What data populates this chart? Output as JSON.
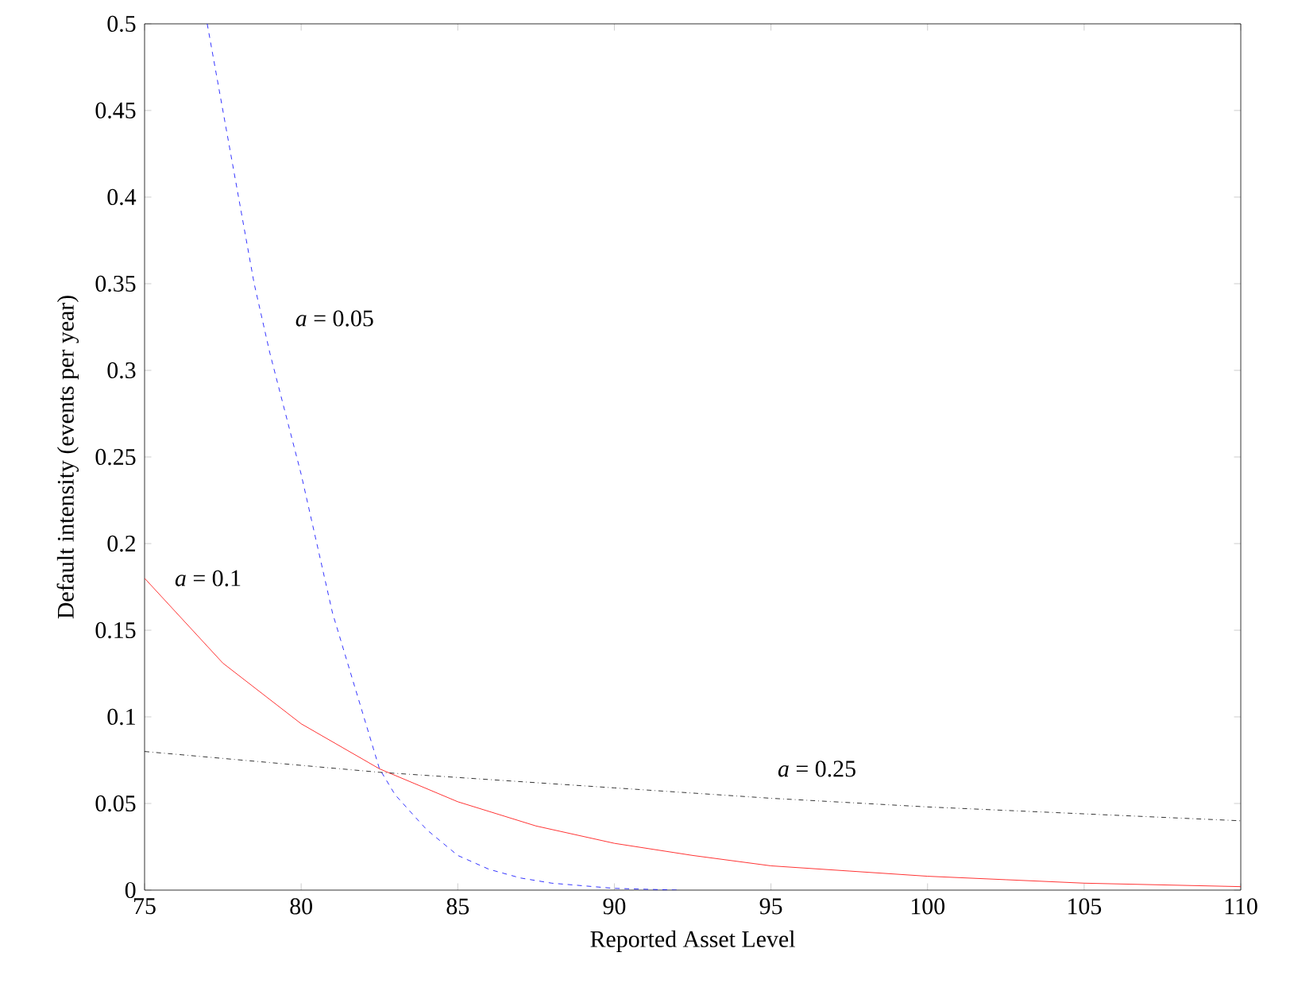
{
  "chart_data": {
    "type": "line",
    "xlabel": "Reported Asset Level",
    "ylabel": "Default intensity (events per year)",
    "xlim": [
      75,
      110
    ],
    "ylim": [
      0,
      0.5
    ],
    "xticks": [
      75,
      80,
      85,
      90,
      95,
      100,
      105,
      110
    ],
    "yticks": [
      0,
      0.05,
      0.1,
      0.15,
      0.2,
      0.25,
      0.3,
      0.35,
      0.4,
      0.45,
      0.5
    ],
    "grid": false,
    "series": [
      {
        "color": "#0000ff",
        "line_style": "dashed",
        "x": [
          77,
          78,
          78.5,
          79,
          80,
          81,
          82,
          82.5,
          83,
          84,
          85,
          86,
          87,
          88,
          90,
          92
        ],
        "values": [
          0.5,
          0.4,
          0.35,
          0.31,
          0.24,
          0.16,
          0.1,
          0.07,
          0.055,
          0.035,
          0.02,
          0.012,
          0.007,
          0.004,
          0.001,
          0
        ]
      },
      {
        "color": "#ff0000",
        "line_style": "solid",
        "x": [
          75,
          77.5,
          80,
          82.5,
          85,
          87.5,
          90,
          92.5,
          95,
          97.5,
          100,
          102.5,
          105,
          107.5,
          110
        ],
        "values": [
          0.18,
          0.131,
          0.096,
          0.07,
          0.051,
          0.037,
          0.027,
          0.02,
          0.014,
          0.011,
          0.008,
          0.006,
          0.004,
          0.003,
          0.002
        ]
      },
      {
        "color": "#000000",
        "line_style": "dashdot",
        "x": [
          75,
          82.5,
          90,
          95,
          100,
          105,
          110
        ],
        "values": [
          0.08,
          0.068,
          0.059,
          0.053,
          0.048,
          0.044,
          0.04
        ]
      }
    ],
    "annotations": [
      "*a* = 0.05",
      "*a* = 0.1",
      "*a* = 0.25"
    ]
  }
}
